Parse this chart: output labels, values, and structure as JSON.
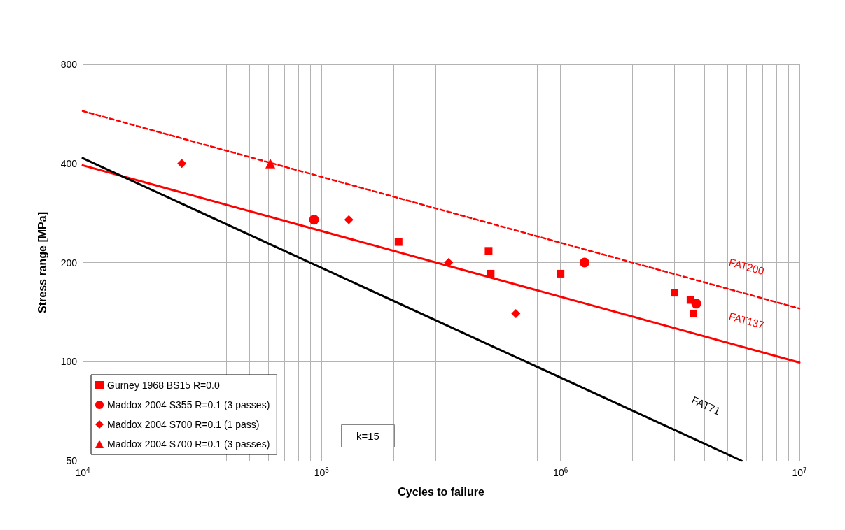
{
  "chart_data": {
    "type": "scatter",
    "xlabel": "Cycles to failure",
    "ylabel": "Stress range [MPa]",
    "log": "xy",
    "grid": true,
    "legend": "bottom left",
    "xlim": [
      10000,
      10000000
    ],
    "ylim": [
      50,
      800
    ],
    "xticks": [
      {
        "value": 10000,
        "label": "10$^{4}$"
      },
      {
        "value": 20000,
        "label": null
      },
      {
        "value": 30000,
        "label": null
      },
      {
        "value": 40000,
        "label": null
      },
      {
        "value": 50000,
        "label": null
      },
      {
        "value": 60000,
        "label": null
      },
      {
        "value": 70000,
        "label": null
      },
      {
        "value": 80000,
        "label": null
      },
      {
        "value": 90000,
        "label": null
      },
      {
        "value": 100000,
        "label": "10$^{5}$"
      },
      {
        "value": 200000,
        "label": null
      },
      {
        "value": 300000,
        "label": null
      },
      {
        "value": 400000,
        "label": null
      },
      {
        "value": 500000,
        "label": null
      },
      {
        "value": 600000,
        "label": null
      },
      {
        "value": 700000,
        "label": null
      },
      {
        "value": 800000,
        "label": null
      },
      {
        "value": 900000,
        "label": null
      },
      {
        "value": 1000000,
        "label": "10$^{6}$"
      },
      {
        "value": 2000000,
        "label": null
      },
      {
        "value": 3000000,
        "label": null
      },
      {
        "value": 4000000,
        "label": null
      },
      {
        "value": 5000000,
        "label": null
      },
      {
        "value": 6000000,
        "label": null
      },
      {
        "value": 7000000,
        "label": null
      },
      {
        "value": 8000000,
        "label": null
      },
      {
        "value": 9000000,
        "label": null
      },
      {
        "value": 10000000,
        "label": "10$^{7}$"
      }
    ],
    "yticks": [
      50,
      100,
      200,
      400,
      800
    ],
    "annotations": [
      "k=15"
    ],
    "series": [
      {
        "name": "Gurney 1968 BS15 R=0.0",
        "color": "#ff0000",
        "marker": "square",
        "x": [
          210000,
          500000,
          510000,
          1000000,
          3000000,
          3500000,
          3600000
        ],
        "values": [
          231,
          217,
          185,
          185,
          162,
          154,
          140
        ]
      },
      {
        "name": "Maddox 2004 S355 R=0.1 (3 passes)",
        "color": "#ff0000",
        "marker": "circle",
        "x": [
          93000,
          1260000,
          3700000
        ],
        "values": [
          270,
          200,
          150
        ]
      },
      {
        "name": "Maddox 2004 S700 R=0.1 (1 pass)",
        "color": "#ff0000",
        "marker": "diamond",
        "x": [
          26000,
          130000,
          340000,
          650000
        ],
        "values": [
          400,
          270,
          200,
          140
        ]
      },
      {
        "name": "Maddox 2004 S700 R=0.1 (3 passes)",
        "color": "#ff0000",
        "marker": "triangle",
        "x": [
          61000
        ],
        "values": [
          400
        ]
      },
      {
        "name": "FAT200",
        "type": "line",
        "color": "#ff0000",
        "marker": "none",
        "line_style": "dashed",
        "x": [
          10000,
          10000000
        ],
        "values": [
          577,
          145
        ]
      },
      {
        "name": "FAT137",
        "type": "line",
        "color": "#ff0000",
        "marker": "none",
        "line_style": "solid",
        "x": [
          10000,
          10000000
        ],
        "values": [
          395,
          99.4
        ]
      },
      {
        "name": "FAT71",
        "type": "line",
        "color": "#000000",
        "marker": "none",
        "line_style": "solid",
        "x": [
          10000,
          5730000
        ],
        "values": [
          415,
          50
        ]
      }
    ]
  }
}
